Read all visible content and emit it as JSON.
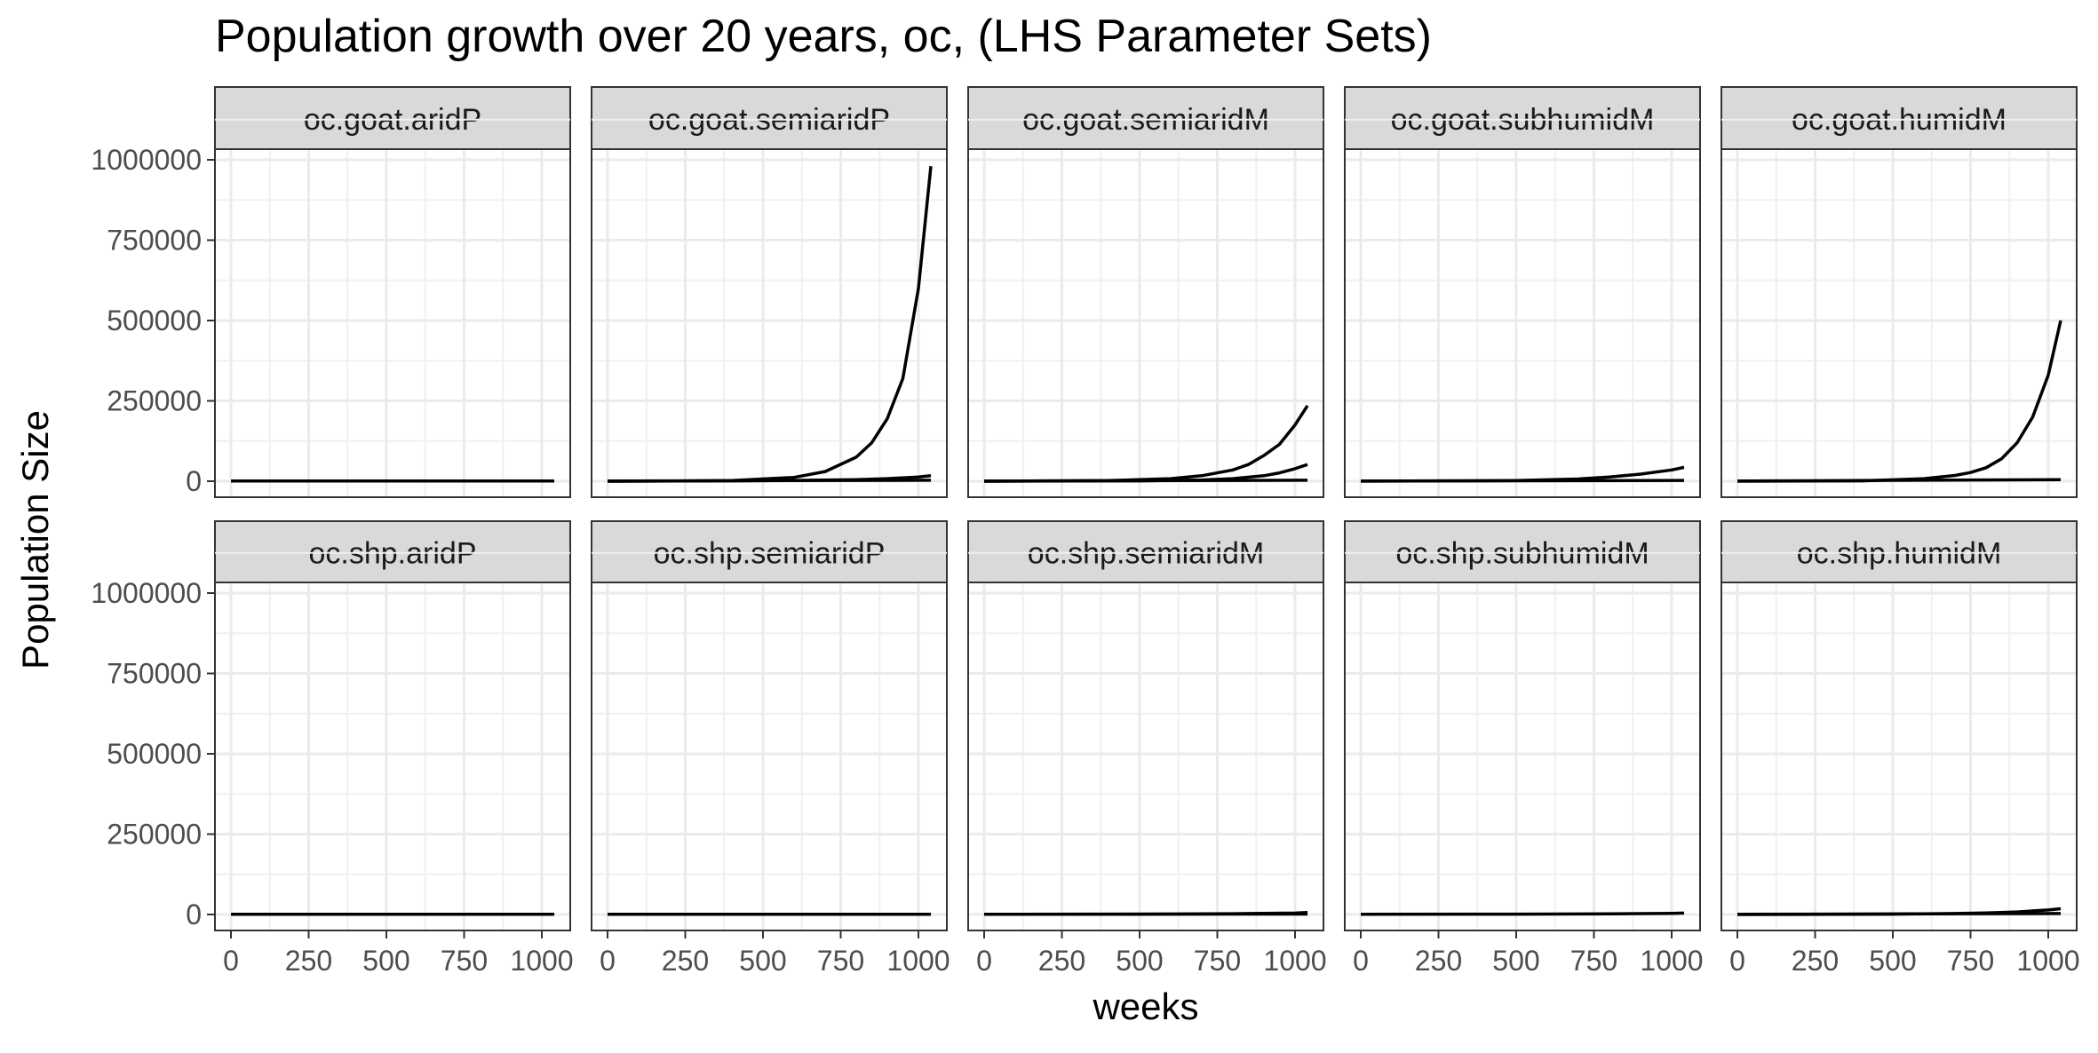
{
  "chart_data": {
    "type": "line",
    "title": "Population growth over 20 years, oc, (LHS Parameter Sets)",
    "xlabel": "weeks",
    "ylabel": "Population Size",
    "xlim": [
      0,
      1040
    ],
    "ylim": [
      0,
      1000000
    ],
    "x_ticks": [
      0,
      250,
      500,
      750,
      1000
    ],
    "x_tick_labels": [
      "0",
      "250",
      "500",
      "750",
      "1000"
    ],
    "y_ticks": [
      0,
      250000,
      500000,
      750000,
      1000000
    ],
    "y_tick_labels": [
      "0",
      "250000",
      "500000",
      "750000",
      "1000000"
    ],
    "grid": true,
    "line_color": "#000000",
    "facet_layout": {
      "rows": 2,
      "cols": 5
    },
    "panels": [
      {
        "label": "oc.goat.aridP",
        "series": [
          {
            "x": [
              0,
              1040
            ],
            "y": [
              500,
              600
            ]
          }
        ]
      },
      {
        "label": "oc.goat.semiaridP",
        "series": [
          {
            "x": [
              0,
              200,
              400,
              600,
              700,
              800,
              850,
              900,
              950,
              1000,
              1040
            ],
            "y": [
              0,
              500,
              2000,
              12000,
              30000,
              75000,
              120000,
              195000,
              320000,
              600000,
              980000
            ]
          },
          {
            "x": [
              0,
              400,
              600,
              800,
              900,
              1000,
              1040
            ],
            "y": [
              0,
              1000,
              2500,
              5000,
              8000,
              13000,
              17000
            ]
          },
          {
            "x": [
              0,
              1040
            ],
            "y": [
              500,
              3000
            ]
          }
        ]
      },
      {
        "label": "oc.goat.semiaridM",
        "series": [
          {
            "x": [
              0,
              400,
              600,
              700,
              800,
              850,
              900,
              950,
              1000,
              1040
            ],
            "y": [
              0,
              2000,
              8000,
              17000,
              35000,
              52000,
              80000,
              115000,
              175000,
              235000
            ]
          },
          {
            "x": [
              0,
              500,
              700,
              800,
              900,
              950,
              1000,
              1040
            ],
            "y": [
              0,
              1000,
              4000,
              8000,
              17000,
              26000,
              39000,
              52000
            ]
          },
          {
            "x": [
              0,
              1040
            ],
            "y": [
              500,
              3000
            ]
          }
        ]
      },
      {
        "label": "oc.goat.subhumidM",
        "series": [
          {
            "x": [
              0,
              500,
              700,
              800,
              900,
              1000,
              1040
            ],
            "y": [
              0,
              2000,
              7000,
              13000,
              22000,
              35000,
              43000
            ]
          },
          {
            "x": [
              0,
              1040
            ],
            "y": [
              500,
              2500
            ]
          }
        ]
      },
      {
        "label": "oc.goat.humidM",
        "series": [
          {
            "x": [
              0,
              400,
              600,
              700,
              750,
              800,
              850,
              900,
              950,
              1000,
              1040
            ],
            "y": [
              0,
              1000,
              8000,
              18000,
              27000,
              42000,
              70000,
              120000,
              200000,
              330000,
              500000
            ]
          },
          {
            "x": [
              0,
              1040
            ],
            "y": [
              500,
              5000
            ]
          }
        ]
      },
      {
        "label": "oc.shp.aridP",
        "series": [
          {
            "x": [
              0,
              1040
            ],
            "y": [
              500,
              600
            ]
          }
        ]
      },
      {
        "label": "oc.shp.semiaridP",
        "series": [
          {
            "x": [
              0,
              1040
            ],
            "y": [
              500,
              800
            ]
          }
        ]
      },
      {
        "label": "oc.shp.semiaridM",
        "series": [
          {
            "x": [
              0,
              500,
              800,
              1000,
              1040
            ],
            "y": [
              500,
              1000,
              2500,
              4500,
              6000
            ]
          },
          {
            "x": [
              0,
              1040
            ],
            "y": [
              500,
              1500
            ]
          }
        ]
      },
      {
        "label": "oc.shp.subhumidM",
        "series": [
          {
            "x": [
              0,
              500,
              800,
              1000,
              1040
            ],
            "y": [
              500,
              1000,
              2000,
              3500,
              4500
            ]
          }
        ]
      },
      {
        "label": "oc.shp.humidM",
        "series": [
          {
            "x": [
              0,
              500,
              700,
              800,
              900,
              1000,
              1040
            ],
            "y": [
              0,
              1000,
              3000,
              5000,
              8000,
              14000,
              18000
            ]
          },
          {
            "x": [
              0,
              1040
            ],
            "y": [
              500,
              3000
            ]
          }
        ]
      }
    ]
  }
}
